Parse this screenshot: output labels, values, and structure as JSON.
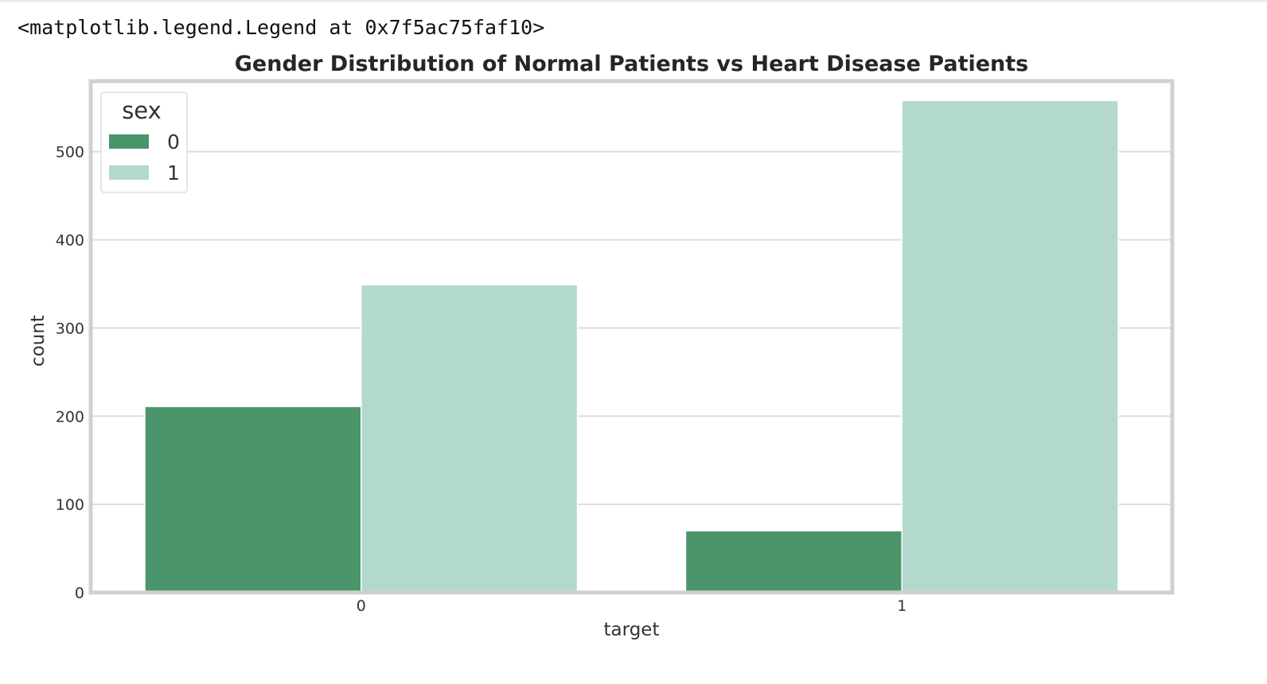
{
  "output": {
    "text": "<matplotlib.legend.Legend at 0x7f5ac75faf10>"
  },
  "chart_data": {
    "type": "bar",
    "title": "Gender Distribution of Normal Patients vs Heart Disease Patients",
    "xlabel": "target",
    "ylabel": "count",
    "categories": [
      "0",
      "1"
    ],
    "series": [
      {
        "name": "0",
        "color": "#4a956a",
        "values": [
          211,
          70
        ]
      },
      {
        "name": "1",
        "color": "#b3d9cf",
        "values": [
          349,
          558
        ]
      }
    ],
    "ylim": [
      0,
      580
    ],
    "yticks": [
      0,
      100,
      200,
      300,
      400,
      500
    ],
    "grid": true,
    "legend": {
      "title": "sex",
      "placement": "top-left"
    },
    "colors": {
      "frame": "#d0d0d0",
      "grid": "#dddddd"
    }
  }
}
